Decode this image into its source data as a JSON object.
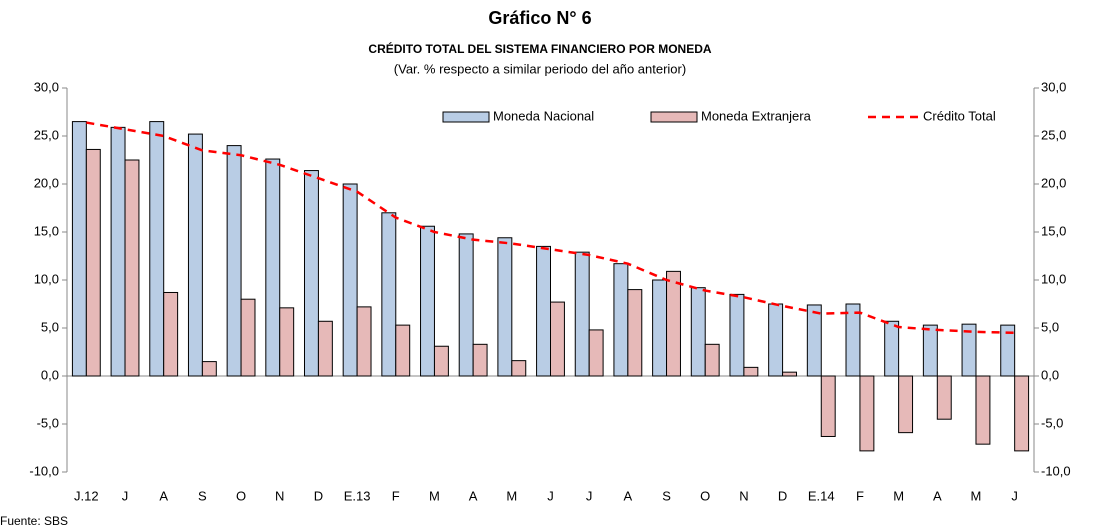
{
  "chart_data": {
    "type": "bar",
    "title": "Gráfico N° 6",
    "subtitle": "CRÉDITO TOTAL  DEL SISTEMA FINANCIERO POR MONEDA",
    "note": "(Var. % respecto a similar periodo del año anterior)",
    "source": "Fuente: SBS",
    "categories": [
      "J.12",
      "J",
      "A",
      "S",
      "O",
      "N",
      "D",
      "E.13",
      "F",
      "M",
      "A",
      "M",
      "J",
      "J",
      "A",
      "S",
      "O",
      "N",
      "D",
      "E.14",
      "F",
      "M",
      "A",
      "M",
      "J"
    ],
    "series": [
      {
        "name": "Moneda Nacional",
        "type": "bar",
        "color": "#b9cde5",
        "values": [
          26.5,
          25.9,
          26.5,
          25.2,
          24.0,
          22.6,
          21.4,
          20.0,
          17.0,
          15.6,
          14.8,
          14.4,
          13.5,
          12.9,
          11.7,
          10.0,
          9.2,
          8.5,
          7.5,
          7.4,
          7.5,
          5.7,
          5.3,
          5.4,
          5.3
        ]
      },
      {
        "name": "Moneda Extranjera",
        "type": "bar",
        "color": "#e6b9b8",
        "values": [
          23.6,
          22.5,
          8.7,
          1.5,
          8.0,
          7.1,
          5.7,
          7.2,
          5.3,
          3.1,
          3.3,
          1.6,
          7.7,
          4.8,
          9.0,
          10.9,
          3.3,
          0.9,
          0.4,
          -6.3,
          -7.8,
          -5.9,
          -4.5,
          -7.1,
          -7.8
        ]
      },
      {
        "name": "Crédito Total",
        "type": "line",
        "color": "#ff0000",
        "axis": "y2",
        "values": [
          26.4,
          25.7,
          25.0,
          23.5,
          23.0,
          22.0,
          20.6,
          19.2,
          16.5,
          15.0,
          14.2,
          13.8,
          13.2,
          12.6,
          11.7,
          10.0,
          8.9,
          8.2,
          7.3,
          6.5,
          6.6,
          5.1,
          4.8,
          4.6,
          4.5
        ]
      }
    ],
    "ylim": [
      -10,
      30
    ],
    "yticks": [
      {
        "value": -10,
        "label": "-10,0"
      },
      {
        "value": -5,
        "label": "-5,0"
      },
      {
        "value": 0,
        "label": "0,0"
      },
      {
        "value": 5,
        "label": "5,0"
      },
      {
        "value": 10,
        "label": "10,0"
      },
      {
        "value": 15,
        "label": "15,0"
      },
      {
        "value": 20,
        "label": "20,0"
      },
      {
        "value": 25,
        "label": "25,0"
      },
      {
        "value": 30,
        "label": "30,0"
      }
    ],
    "y2lim": [
      -10,
      30
    ],
    "y2ticks": [
      {
        "value": -10,
        "label": "-10,0"
      },
      {
        "value": -5,
        "label": "-5,0"
      },
      {
        "value": 0,
        "label": "0,0"
      },
      {
        "value": 5,
        "label": "5,0"
      },
      {
        "value": 10,
        "label": "10,0"
      },
      {
        "value": 15,
        "label": "15,0"
      },
      {
        "value": 20,
        "label": "20,0"
      },
      {
        "value": 25,
        "label": "25,0"
      },
      {
        "value": 30,
        "label": "30,0"
      }
    ],
    "grid": false
  }
}
